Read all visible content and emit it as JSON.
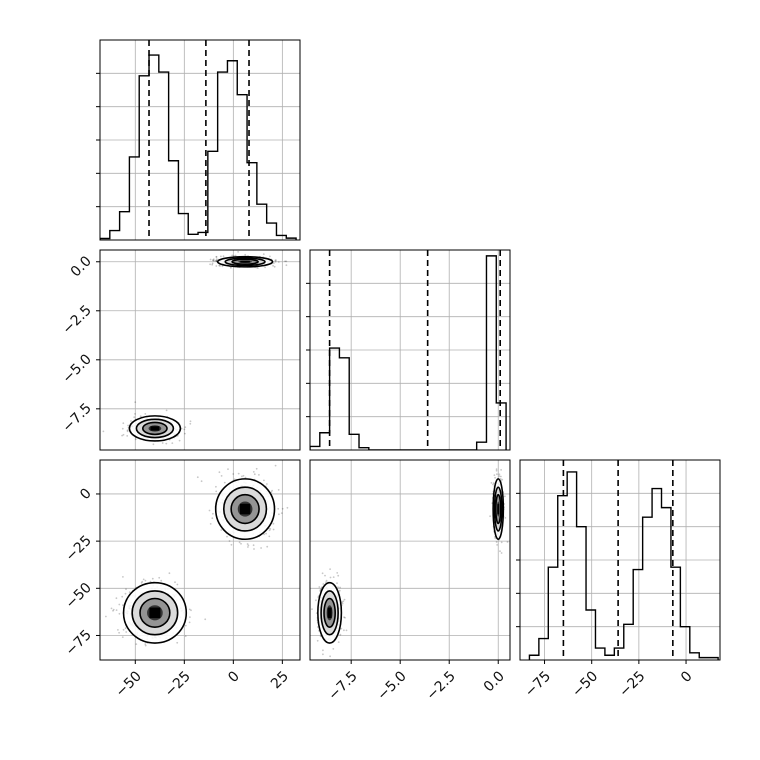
{
  "chart_data": [
    {
      "type": "histogram",
      "panel": "p1-marginal",
      "xlim": [
        -68,
        34
      ],
      "ylim": [
        0,
        530
      ],
      "x_tick_labels": [],
      "y_tick_labels": [],
      "bins": [
        -68,
        -63,
        -58,
        -53,
        -48,
        -43,
        -38,
        -33,
        -28,
        -23,
        -18,
        -13,
        -8,
        -3,
        2,
        7,
        12,
        17,
        22,
        27,
        32
      ],
      "counts": [
        4,
        25,
        75,
        220,
        435,
        490,
        445,
        210,
        70,
        15,
        20,
        235,
        445,
        475,
        385,
        205,
        95,
        45,
        12,
        5
      ],
      "quantile_lines": [
        -43,
        -14,
        8
      ],
      "grid": true
    },
    {
      "type": "histogram",
      "panel": "p2-marginal",
      "xlim": [
        -9.6,
        0.6
      ],
      "ylim": [
        0,
        1020
      ],
      "x_tick_labels": [],
      "y_tick_labels": [],
      "bins": [
        -9.6,
        -9.1,
        -8.6,
        -8.1,
        -7.6,
        -7.1,
        -6.6,
        -1.1,
        -0.6,
        -0.1,
        0.4
      ],
      "counts": [
        18,
        88,
        520,
        470,
        80,
        12,
        0,
        40,
        990,
        240
      ],
      "quantile_lines": [
        -8.6,
        -3.6,
        0.1
      ],
      "grid": true
    },
    {
      "type": "histogram",
      "panel": "p3-marginal",
      "xlim": [
        -88,
        18
      ],
      "ylim": [
        0,
        420
      ],
      "x_tick_labels": [
        "−75",
        "−50",
        "−25",
        "0"
      ],
      "x_ticks": [
        -75,
        -50,
        -25,
        0
      ],
      "y_tick_labels": [],
      "bins": [
        -83,
        -78,
        -73,
        -68,
        -63,
        -58,
        -53,
        -48,
        -43,
        -38,
        -33,
        -28,
        -23,
        -18,
        -13,
        -8,
        -3,
        2,
        7,
        12,
        17
      ],
      "counts": [
        10,
        45,
        195,
        345,
        395,
        280,
        105,
        25,
        10,
        25,
        75,
        190,
        300,
        360,
        320,
        195,
        70,
        15,
        5,
        5
      ],
      "quantile_lines": [
        -65,
        -36,
        -7
      ],
      "grid": true
    },
    {
      "type": "contour-scatter",
      "panel": "p1-vs-p2",
      "xlim": [
        -68,
        34
      ],
      "ylim": [
        -9.6,
        0.6
      ],
      "y_tick_labels": [
        "0.0",
        "−2.5",
        "−5.0",
        "−7.5"
      ],
      "y_ticks": [
        0,
        -2.5,
        -5,
        -7.5
      ],
      "clusters": [
        {
          "center": [
            -40,
            -8.5
          ],
          "spread": [
            6.5,
            0.32
          ],
          "n": 420
        },
        {
          "center": [
            6,
            0.0
          ],
          "spread": [
            7.0,
            0.13
          ],
          "n": 420
        }
      ],
      "grid": true
    },
    {
      "type": "contour-scatter",
      "panel": "p1-vs-p3",
      "xlim": [
        -68,
        34
      ],
      "ylim": [
        -88,
        18
      ],
      "x_tick_labels": [
        "−50",
        "−25",
        "0",
        "25"
      ],
      "x_ticks": [
        -50,
        -25,
        0,
        25
      ],
      "y_tick_labels": [
        "0",
        "−25",
        "−50",
        "−75"
      ],
      "y_ticks": [
        0,
        -25,
        -50,
        -75
      ],
      "clusters": [
        {
          "center": [
            -40,
            -63
          ],
          "spread": [
            8.0,
            8.0
          ],
          "n": 420
        },
        {
          "center": [
            6,
            -8
          ],
          "spread": [
            7.5,
            8.0
          ],
          "n": 420
        }
      ],
      "grid": true
    },
    {
      "type": "contour-scatter",
      "panel": "p2-vs-p3",
      "xlim": [
        -9.6,
        0.6
      ],
      "ylim": [
        -88,
        18
      ],
      "x_tick_labels": [
        "−7.5",
        "−5.0",
        "−2.5",
        "0.0"
      ],
      "x_ticks": [
        -7.5,
        -5,
        -2.5,
        0
      ],
      "clusters": [
        {
          "center": [
            -8.6,
            -63
          ],
          "spread": [
            0.3,
            8.0
          ],
          "n": 360
        },
        {
          "center": [
            0.0,
            -8
          ],
          "spread": [
            0.13,
            8.0
          ],
          "n": 360
        }
      ],
      "grid": true
    }
  ]
}
